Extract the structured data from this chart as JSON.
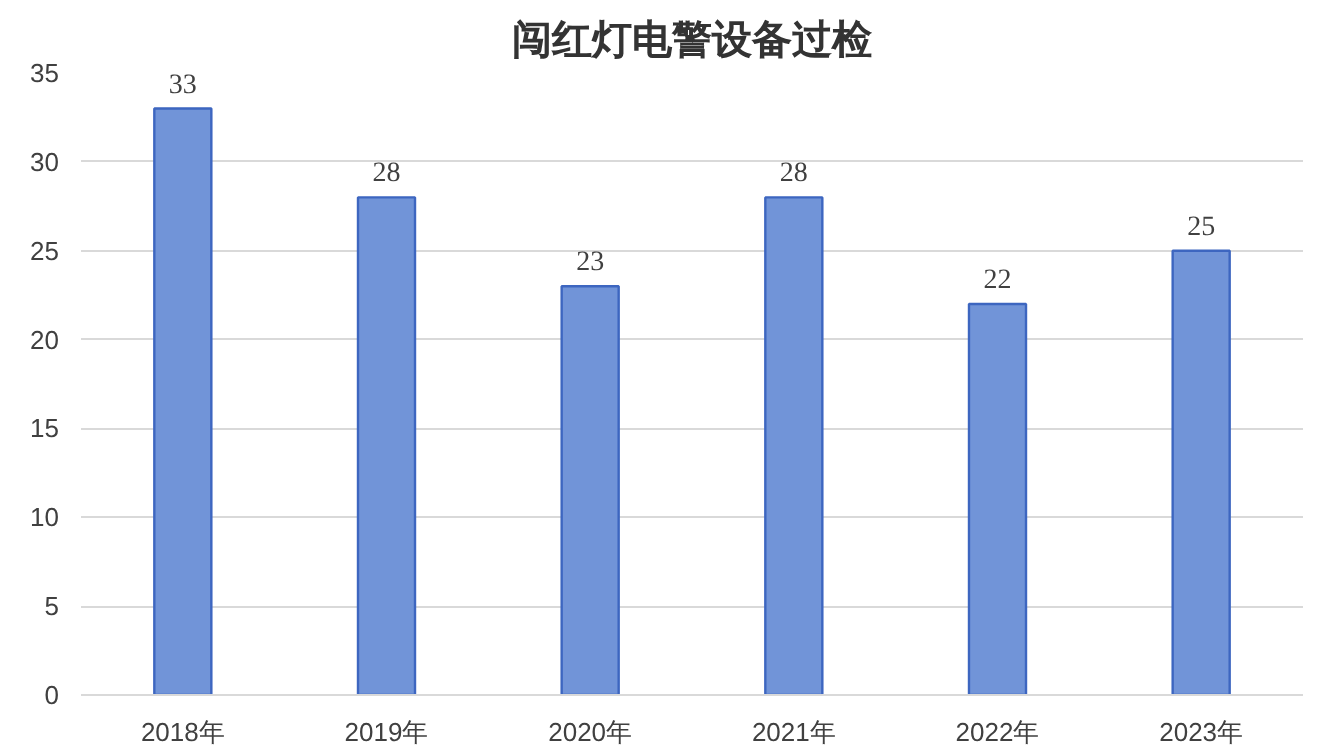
{
  "chart_data": {
    "type": "bar",
    "title": "闯红灯电警设备过检",
    "categories": [
      "2018年",
      "2019年",
      "2020年",
      "2021年",
      "2022年",
      "2023年"
    ],
    "values": [
      33,
      28,
      23,
      28,
      22,
      25
    ],
    "color": "#7194d8",
    "ylim": [
      0,
      35
    ],
    "yticks": [
      0,
      5,
      10,
      15,
      20,
      25,
      30,
      35
    ],
    "grid": "y",
    "data_labels": true
  }
}
